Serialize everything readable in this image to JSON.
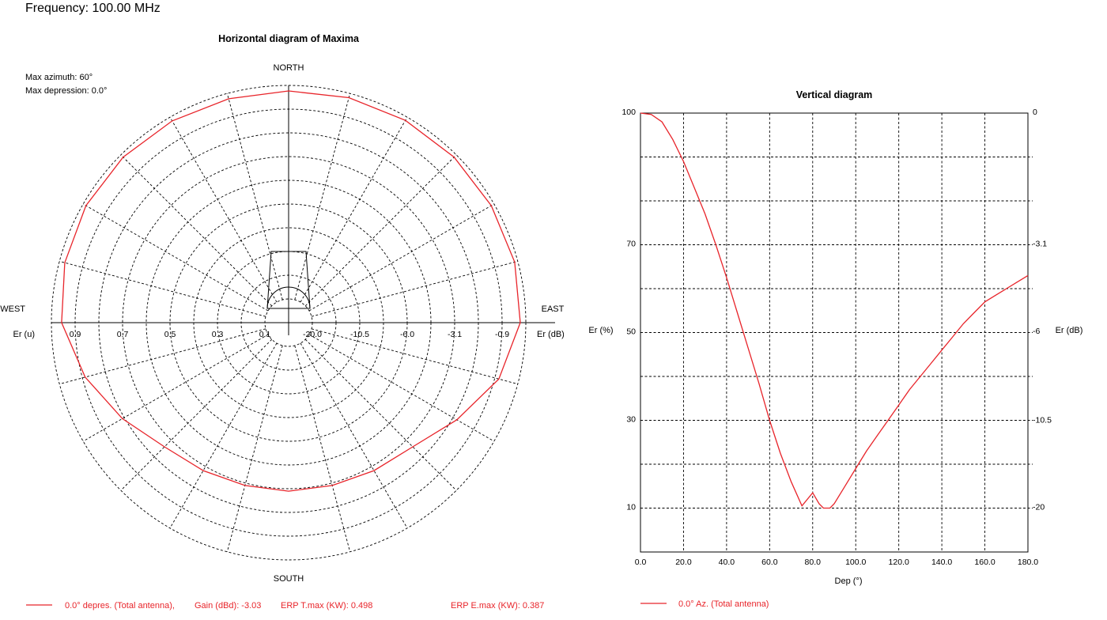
{
  "header": {
    "frequency": "Frequency: 100.00 MHz"
  },
  "horizontal": {
    "title": "Horizontal diagram of Maxima",
    "max_azimuth": "Max azimuth: 60°",
    "max_depression": "Max depression: 0.0°",
    "north": "NORTH",
    "south": "SOUTH",
    "west": "WEST",
    "east": "EAST",
    "left_unit": "Er (u)",
    "right_unit": "Er (dB)",
    "left_ticks": [
      "0.9",
      "0.7",
      "0.5",
      "0.3",
      "0.1"
    ],
    "right_ticks": [
      "-20.0",
      "-10.5",
      "-6.0",
      "-3.1",
      "-0.9"
    ],
    "legend": {
      "label": "0.0° depres. (Total antenna),",
      "gain": "Gain (dBd): -3.03",
      "erp_t": "ERP T.max (KW): 0.498",
      "erp_e": "ERP E.max (KW): 0.387"
    }
  },
  "vertical": {
    "title": "Vertical diagram",
    "ylabel": "Er  (%)",
    "xlabel": "Dep (°)",
    "right_label": "Er  (dB)",
    "left_ticks": [
      "100",
      "70",
      "50",
      "30",
      "10"
    ],
    "right_ticks": [
      "0",
      "-3.1",
      "-6",
      "-10.5",
      "-20"
    ],
    "x_ticks": [
      "0.0",
      "20.0",
      "40.0",
      "60.0",
      "80.0",
      "100.0",
      "120.0",
      "140.0",
      "160.0",
      "180.0"
    ],
    "legend": {
      "label": "0.0° Az. (Total antenna)"
    }
  },
  "chart_data": [
    {
      "type": "line",
      "title": "Horizontal diagram of Maxima",
      "polar": true,
      "x_unit": "azimuth (degrees, 0 = NORTH, clockwise)",
      "y_unit": "Er (u)",
      "rlim": [
        0,
        1
      ],
      "grid": true,
      "series": [
        {
          "name": "0.0° depres. (Total antenna)",
          "x": [
            0,
            15,
            30,
            45,
            60,
            75,
            90,
            105,
            120,
            135,
            150,
            165,
            180,
            195,
            210,
            225,
            240,
            255,
            270,
            285,
            300,
            315,
            330,
            345,
            360
          ],
          "values": [
            0.99,
            0.995,
            0.998,
            1.0,
            1.0,
            1.0,
            0.99,
            0.93,
            0.83,
            0.75,
            0.73,
            0.72,
            0.72,
            0.72,
            0.73,
            0.75,
            0.82,
            0.9,
            0.97,
            0.99,
            1.0,
            1.0,
            0.995,
            0.99,
            0.99
          ]
        }
      ]
    },
    {
      "type": "line",
      "title": "Vertical diagram",
      "xlabel": "Dep (°)",
      "ylabel": "Er  (%)",
      "xlim": [
        0,
        180
      ],
      "ylim": [
        0,
        100
      ],
      "grid": true,
      "series": [
        {
          "name": "0.0° Az. (Total antenna)",
          "x": [
            0,
            5,
            10,
            15,
            20,
            25,
            30,
            35,
            40,
            45,
            50,
            55,
            60,
            65,
            70,
            75,
            80,
            83,
            85,
            88,
            90,
            95,
            100,
            105,
            110,
            115,
            120,
            125,
            130,
            135,
            140,
            145,
            150,
            155,
            160,
            165,
            170,
            175,
            180
          ],
          "values": [
            100,
            99.7,
            98,
            94,
            89,
            83,
            77,
            70,
            62.5,
            54.5,
            46.5,
            38.5,
            30,
            22.5,
            16,
            10.5,
            13.5,
            11,
            10,
            10,
            11,
            15,
            19,
            23,
            26.5,
            30,
            33.5,
            37,
            40,
            43,
            46,
            49,
            52,
            54.5,
            57,
            58.5,
            60,
            61.5,
            63
          ]
        }
      ]
    }
  ]
}
